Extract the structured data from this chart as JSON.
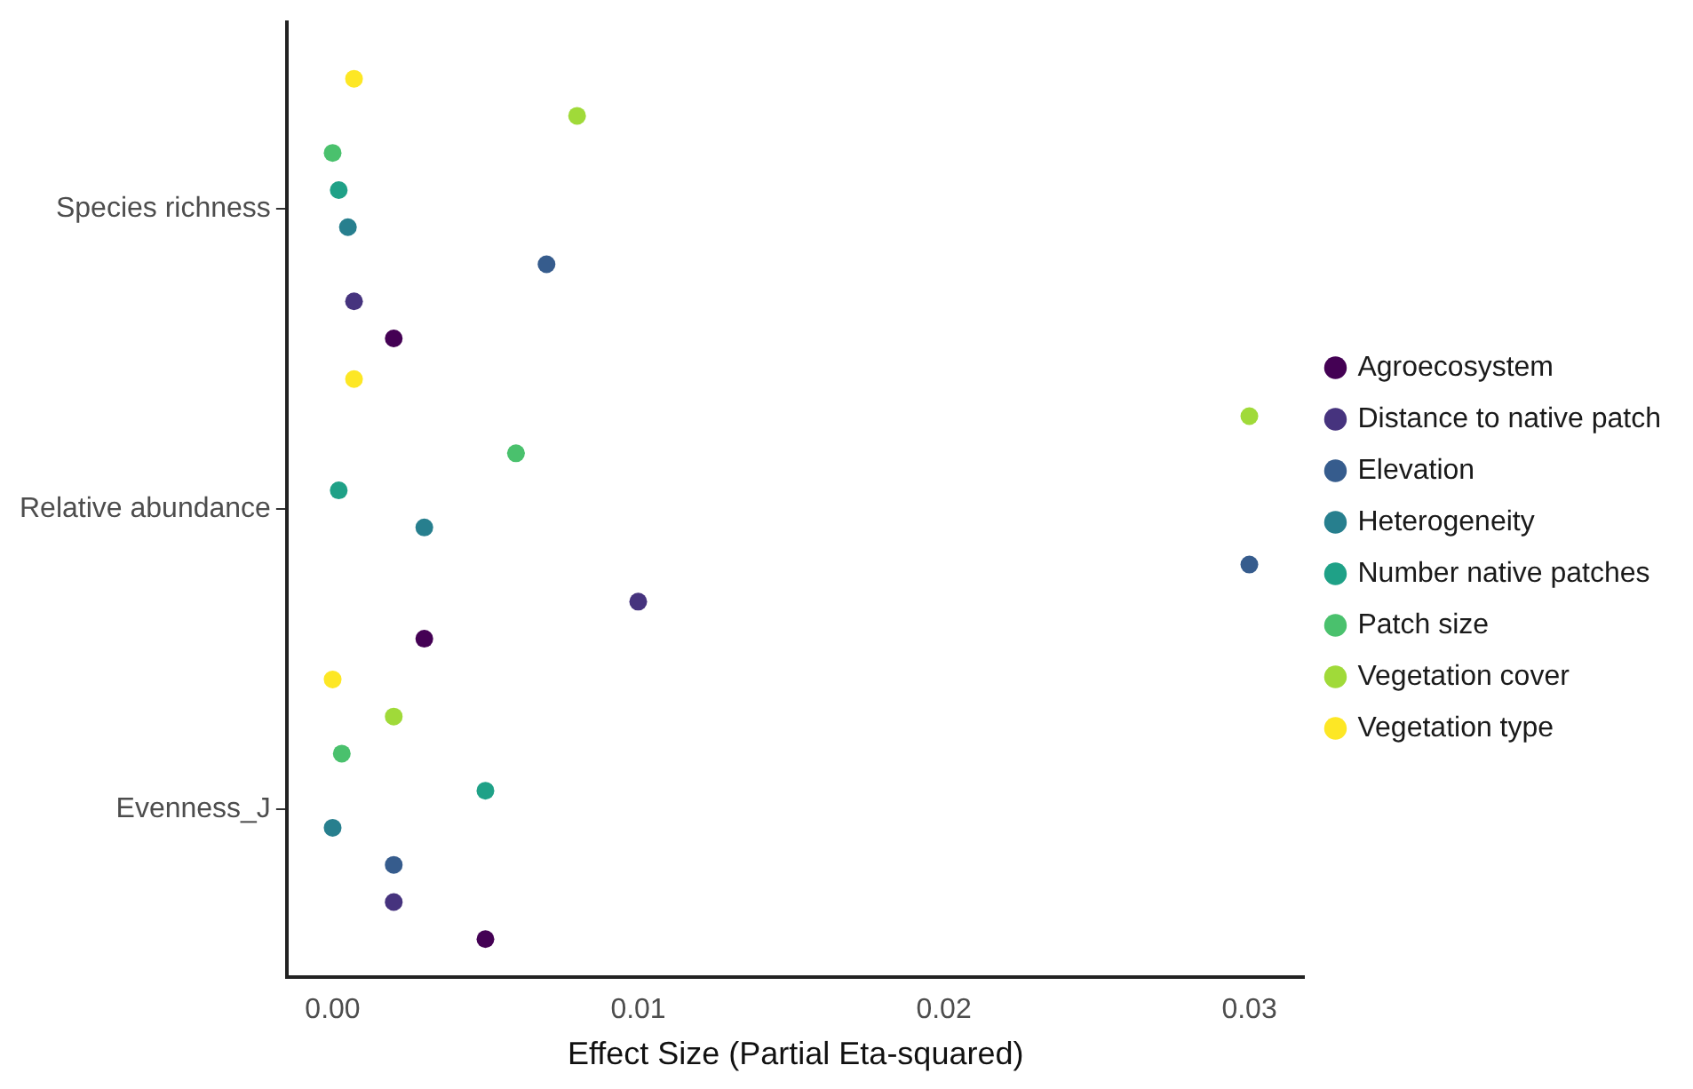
{
  "chart_data": {
    "type": "scatter",
    "orientation": "horizontal",
    "xlabel": "Effect Size (Partial Eta-squared)",
    "categories": [
      "Species richness",
      "Relative abundance",
      "Evenness_J"
    ],
    "xlim": [
      -0.0015,
      0.0318
    ],
    "xticks": [
      {
        "value": 0,
        "label": "0.00"
      },
      {
        "value": 0.01,
        "label": "0.01"
      },
      {
        "value": 0.02,
        "label": "0.02"
      },
      {
        "value": 0.03,
        "label": "0.03"
      }
    ],
    "grid": false,
    "legend": "right",
    "marker": "circle",
    "series": [
      {
        "name": "Agroecosystem",
        "color": "#440154",
        "values": [
          0.002,
          0.003,
          0.005
        ]
      },
      {
        "name": "Distance to native patch",
        "color": "#46337e",
        "values": [
          0.0007,
          0.01,
          0.002
        ]
      },
      {
        "name": "Elevation",
        "color": "#365c8d",
        "values": [
          0.007,
          0.03,
          0.002
        ]
      },
      {
        "name": "Heterogeneity",
        "color": "#277f8e",
        "values": [
          0.0005,
          0.003,
          0
        ]
      },
      {
        "name": "Number native patches",
        "color": "#1fa187",
        "values": [
          0.0002,
          0.0002,
          0.005
        ]
      },
      {
        "name": "Patch size",
        "color": "#4ac16d",
        "values": [
          0,
          0.006,
          0.0003
        ]
      },
      {
        "name": "Vegetation cover",
        "color": "#a0da39",
        "values": [
          0.008,
          0.03,
          0.002
        ]
      },
      {
        "name": "Vegetation type",
        "color": "#fde725",
        "values": [
          0.0007,
          0.0007,
          0
        ]
      }
    ]
  }
}
